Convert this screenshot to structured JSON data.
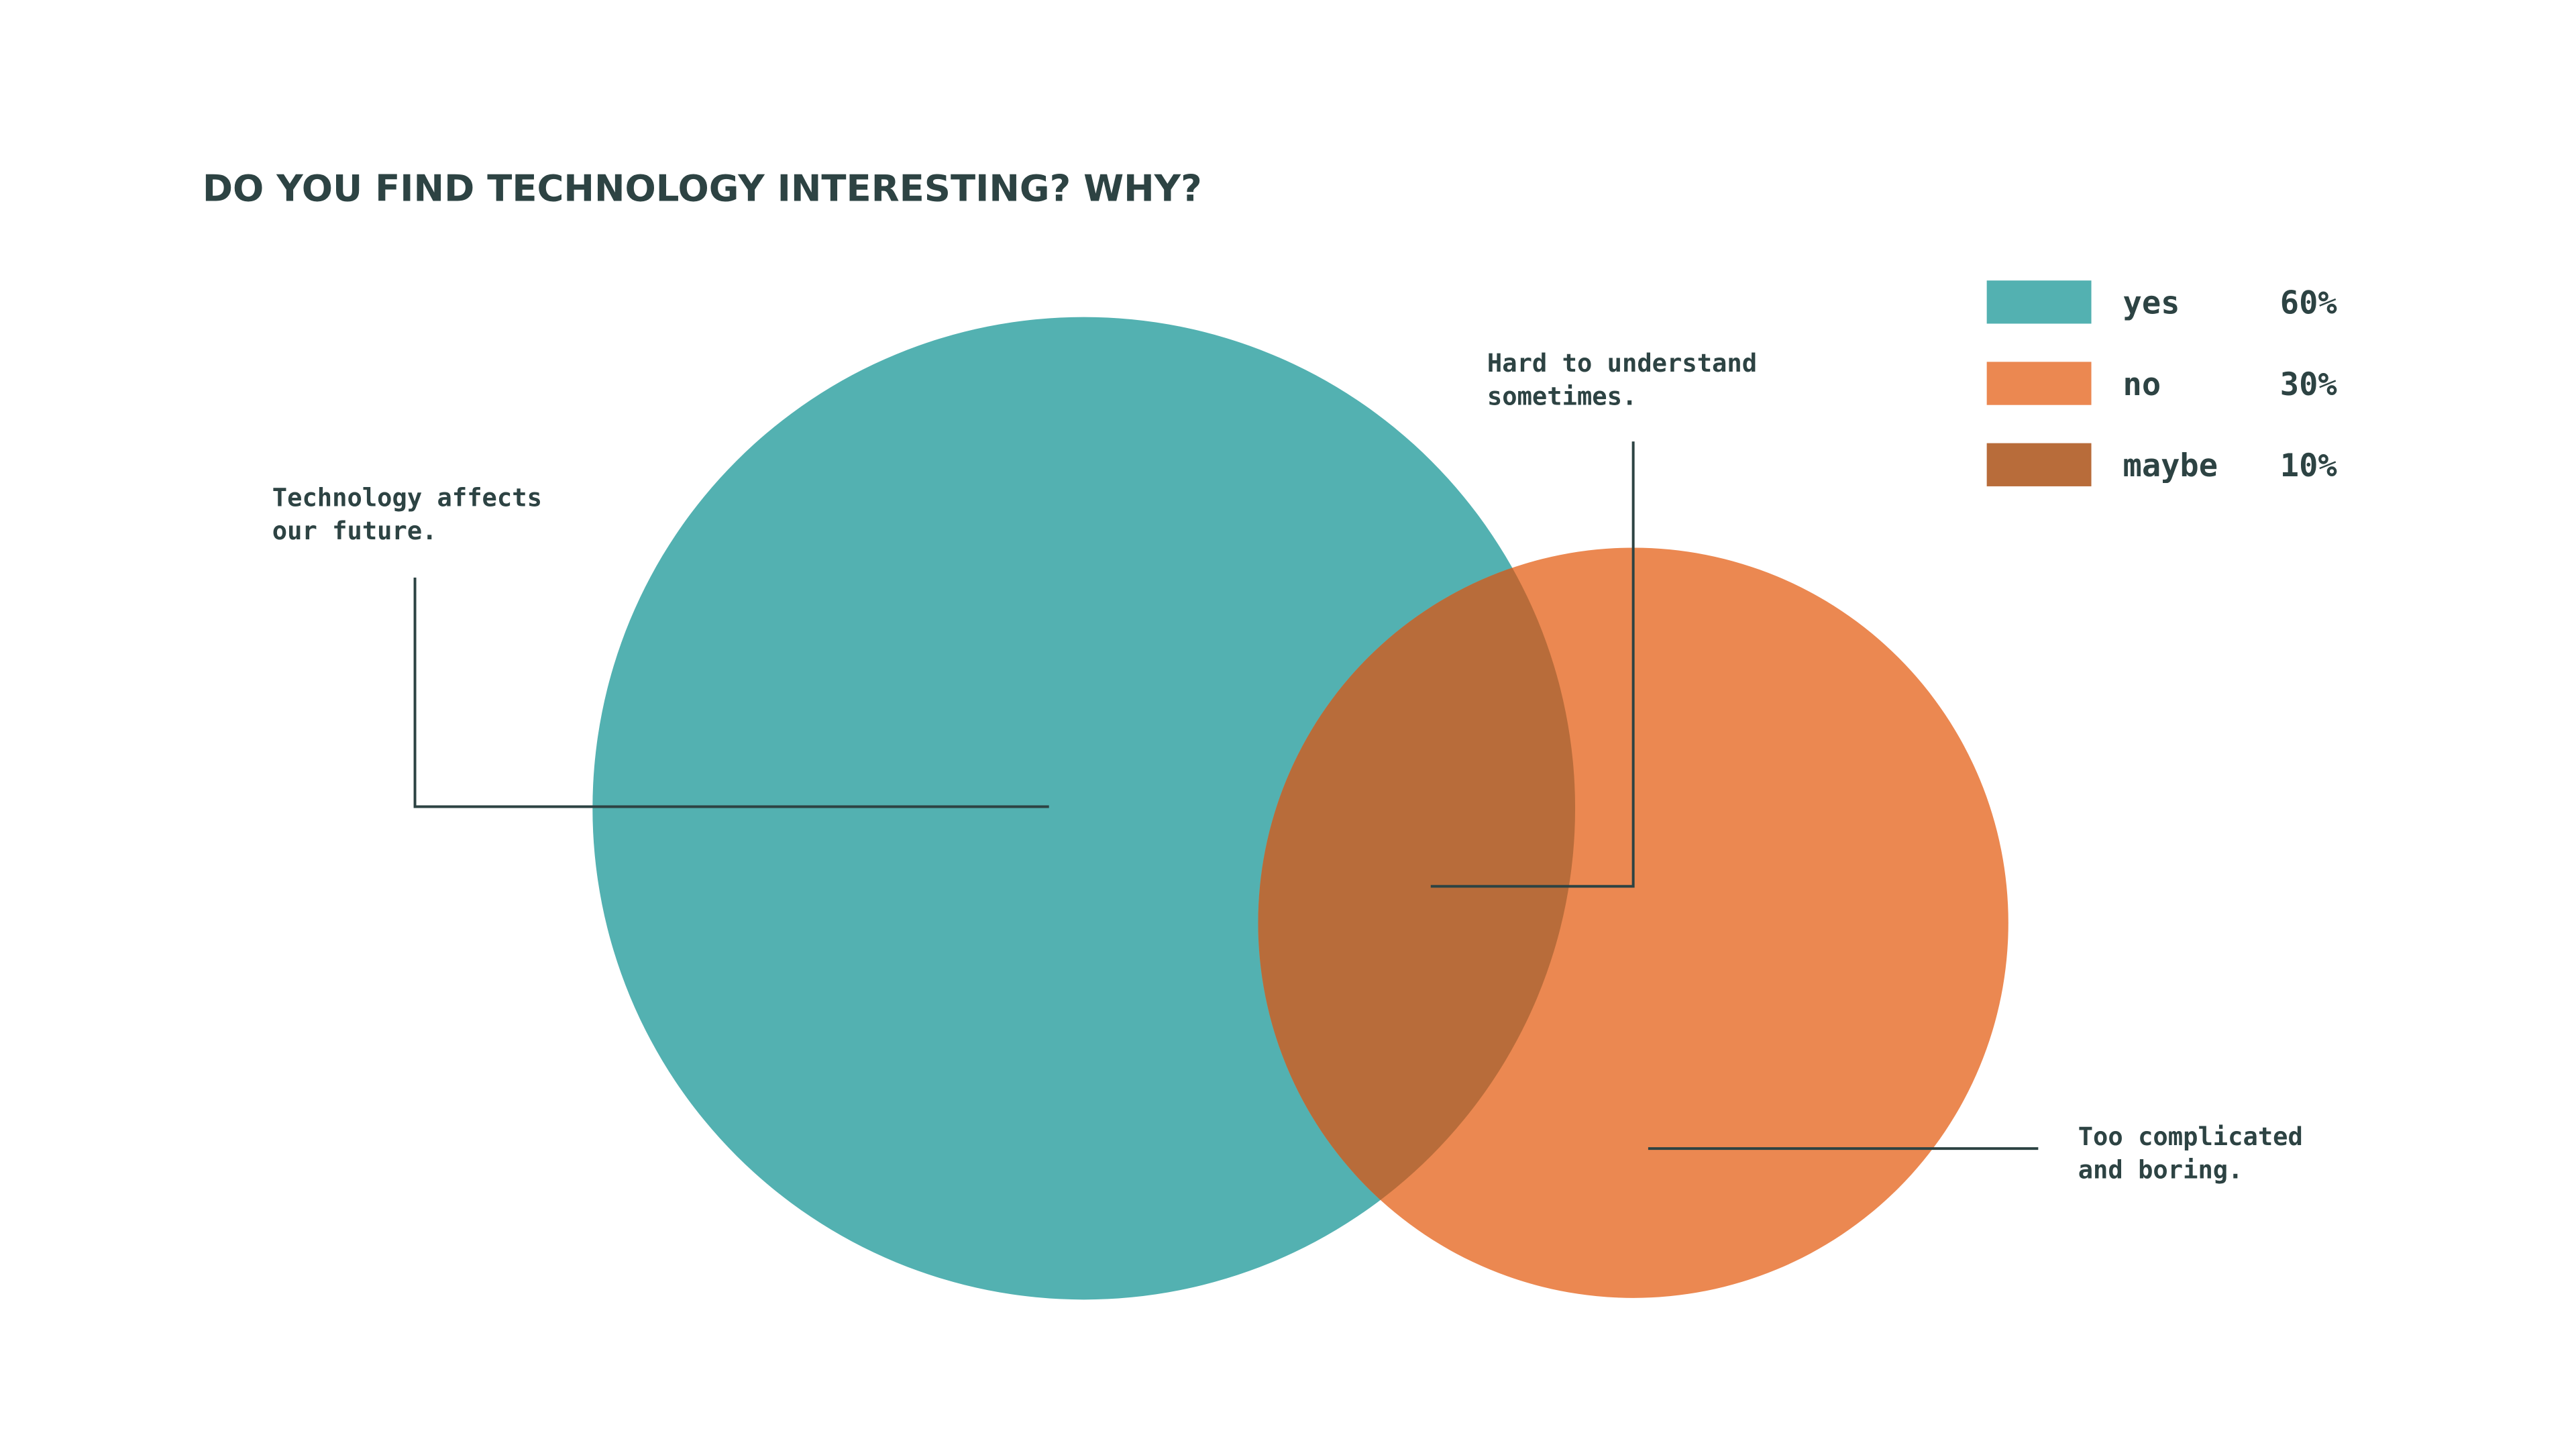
{
  "chart_data": {
    "type": "venn",
    "title": "DO YOU FIND TECHNOLOGY INTERESTING? WHY?",
    "series": [
      {
        "name": "yes",
        "color": "#53b1b1",
        "values": [
          60
        ],
        "value_labels": [
          "60%"
        ]
      },
      {
        "name": "no",
        "color": "#eb8851",
        "values": [
          30
        ],
        "value_labels": [
          "30%"
        ]
      },
      {
        "name": "maybe",
        "color": "#b86c3a",
        "values": [
          10
        ],
        "value_labels": [
          "10%"
        ]
      }
    ],
    "annotations": [
      {
        "lines": [
          "Technology affects",
          "our future."
        ]
      },
      {
        "lines": [
          "Hard to understand",
          "sometimes."
        ]
      },
      {
        "lines": [
          "Too complicated",
          "and boring."
        ]
      }
    ]
  }
}
